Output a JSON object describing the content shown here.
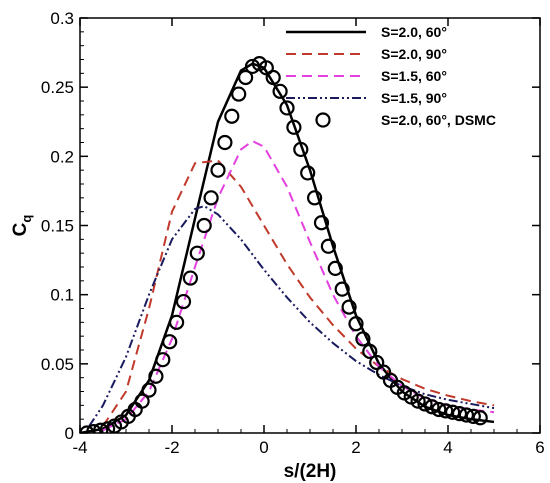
{
  "chart_data": {
    "type": "line",
    "title": "",
    "xlabel": "s/(2H)",
    "ylabel": "C",
    "ylabel_sub": "q",
    "xlim": [
      -4,
      6
    ],
    "ylim": [
      0,
      0.3
    ],
    "xticks": [
      -4,
      -2,
      0,
      2,
      4,
      6
    ],
    "xtick_labels": [
      "-4",
      "-2",
      "0",
      "2",
      "4",
      "6"
    ],
    "yticks": [
      0,
      0.05,
      0.1,
      0.15,
      0.2,
      0.25,
      0.3
    ],
    "ytick_labels": [
      "0",
      "0.05",
      "0.1",
      "0.15",
      "0.2",
      "0.25",
      "0.3"
    ],
    "grid": false,
    "legend_position": "top-right",
    "series": [
      {
        "name": "S=2.0, 60°",
        "style": "solid",
        "color": "#000000",
        "x": [
          -4.0,
          -3.5,
          -3.0,
          -2.5,
          -2.0,
          -1.5,
          -1.0,
          -0.5,
          -0.25,
          0.0,
          0.5,
          1.0,
          1.5,
          2.0,
          2.5,
          3.0,
          3.5,
          4.0,
          4.5,
          5.0
        ],
        "y": [
          0.0,
          0.003,
          0.013,
          0.038,
          0.085,
          0.155,
          0.225,
          0.262,
          0.267,
          0.264,
          0.237,
          0.19,
          0.135,
          0.085,
          0.05,
          0.03,
          0.019,
          0.013,
          0.01,
          0.008
        ]
      },
      {
        "name": "S=2.0, 90°",
        "style": "dashed",
        "color": "#c0392b",
        "x": [
          -3.5,
          -3.0,
          -2.5,
          -2.0,
          -1.5,
          -1.0,
          -0.5,
          0.0,
          0.5,
          1.0,
          1.5,
          2.0,
          2.5,
          3.0,
          3.5,
          4.0,
          4.5,
          5.0
        ],
        "y": [
          0.005,
          0.03,
          0.09,
          0.16,
          0.195,
          0.197,
          0.178,
          0.15,
          0.122,
          0.098,
          0.078,
          0.061,
          0.048,
          0.039,
          0.032,
          0.027,
          0.023,
          0.02
        ]
      },
      {
        "name": "S=1.5, 60°",
        "style": "dashed",
        "color": "#e43fe0",
        "x": [
          -3.5,
          -3.0,
          -2.5,
          -2.0,
          -1.5,
          -1.0,
          -0.5,
          -0.25,
          0.0,
          0.5,
          1.0,
          1.5,
          2.0,
          2.5,
          3.0,
          3.5,
          4.0,
          4.5,
          5.0
        ],
        "y": [
          0.002,
          0.01,
          0.03,
          0.068,
          0.12,
          0.17,
          0.205,
          0.211,
          0.207,
          0.178,
          0.138,
          0.1,
          0.07,
          0.048,
          0.034,
          0.025,
          0.02,
          0.017,
          0.015
        ]
      },
      {
        "name": "S=1.5, 90°",
        "style": "dashdotdot",
        "color": "#1a1a5e",
        "x": [
          -3.8,
          -3.5,
          -3.0,
          -2.5,
          -2.0,
          -1.5,
          -1.3,
          -1.0,
          -0.5,
          0.0,
          0.5,
          1.0,
          1.5,
          2.0,
          2.5,
          3.0,
          3.5,
          4.0,
          4.5,
          5.0
        ],
        "y": [
          0.005,
          0.02,
          0.055,
          0.1,
          0.14,
          0.162,
          0.164,
          0.158,
          0.14,
          0.118,
          0.098,
          0.08,
          0.065,
          0.052,
          0.042,
          0.034,
          0.028,
          0.024,
          0.021,
          0.018
        ]
      },
      {
        "name": "S=2.0, 60°, DSMC",
        "style": "markers",
        "marker": "circle",
        "color": "#000000",
        "x": [
          -3.85,
          -3.7,
          -3.55,
          -3.4,
          -3.25,
          -3.1,
          -2.95,
          -2.8,
          -2.65,
          -2.5,
          -2.35,
          -2.2,
          -2.05,
          -1.9,
          -1.75,
          -1.6,
          -1.45,
          -1.3,
          -1.15,
          -1.0,
          -0.85,
          -0.7,
          -0.55,
          -0.4,
          -0.25,
          -0.1,
          0.05,
          0.2,
          0.35,
          0.5,
          0.65,
          0.8,
          0.95,
          1.1,
          1.25,
          1.4,
          1.55,
          1.7,
          1.85,
          2.0,
          2.15,
          2.3,
          2.45,
          2.6,
          2.75,
          2.9,
          3.05,
          3.2,
          3.35,
          3.5,
          3.65,
          3.8,
          3.95,
          4.1,
          4.25,
          4.4,
          4.55,
          4.7
        ],
        "y": [
          0.0,
          0.001,
          0.002,
          0.003,
          0.005,
          0.008,
          0.012,
          0.017,
          0.023,
          0.031,
          0.041,
          0.053,
          0.066,
          0.08,
          0.095,
          0.112,
          0.13,
          0.15,
          0.17,
          0.19,
          0.21,
          0.229,
          0.245,
          0.257,
          0.265,
          0.267,
          0.264,
          0.257,
          0.247,
          0.235,
          0.221,
          0.205,
          0.188,
          0.17,
          0.152,
          0.135,
          0.119,
          0.104,
          0.091,
          0.079,
          0.068,
          0.059,
          0.051,
          0.044,
          0.038,
          0.033,
          0.029,
          0.026,
          0.023,
          0.021,
          0.019,
          0.017,
          0.016,
          0.015,
          0.014,
          0.013,
          0.012,
          0.011
        ]
      }
    ]
  }
}
